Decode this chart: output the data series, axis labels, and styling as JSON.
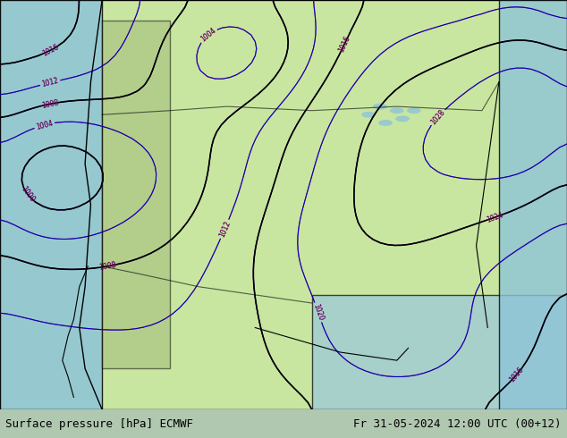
{
  "title_left": "Surface pressure [hPa] ECMWF",
  "title_right": "Fr 31-05-2024 12:00 UTC (00+12)",
  "bg_color": "#c8e8c8",
  "land_color": "#c8e6a0",
  "ocean_color": "#a8c8e8",
  "contour_blue_color": "#0000cc",
  "contour_red_color": "#cc0000",
  "contour_black_color": "#000000",
  "bottom_bar_color": "#d0d0d0",
  "bottom_text_color": "#000000",
  "fig_width": 6.34,
  "fig_height": 4.9,
  "dpi": 100
}
